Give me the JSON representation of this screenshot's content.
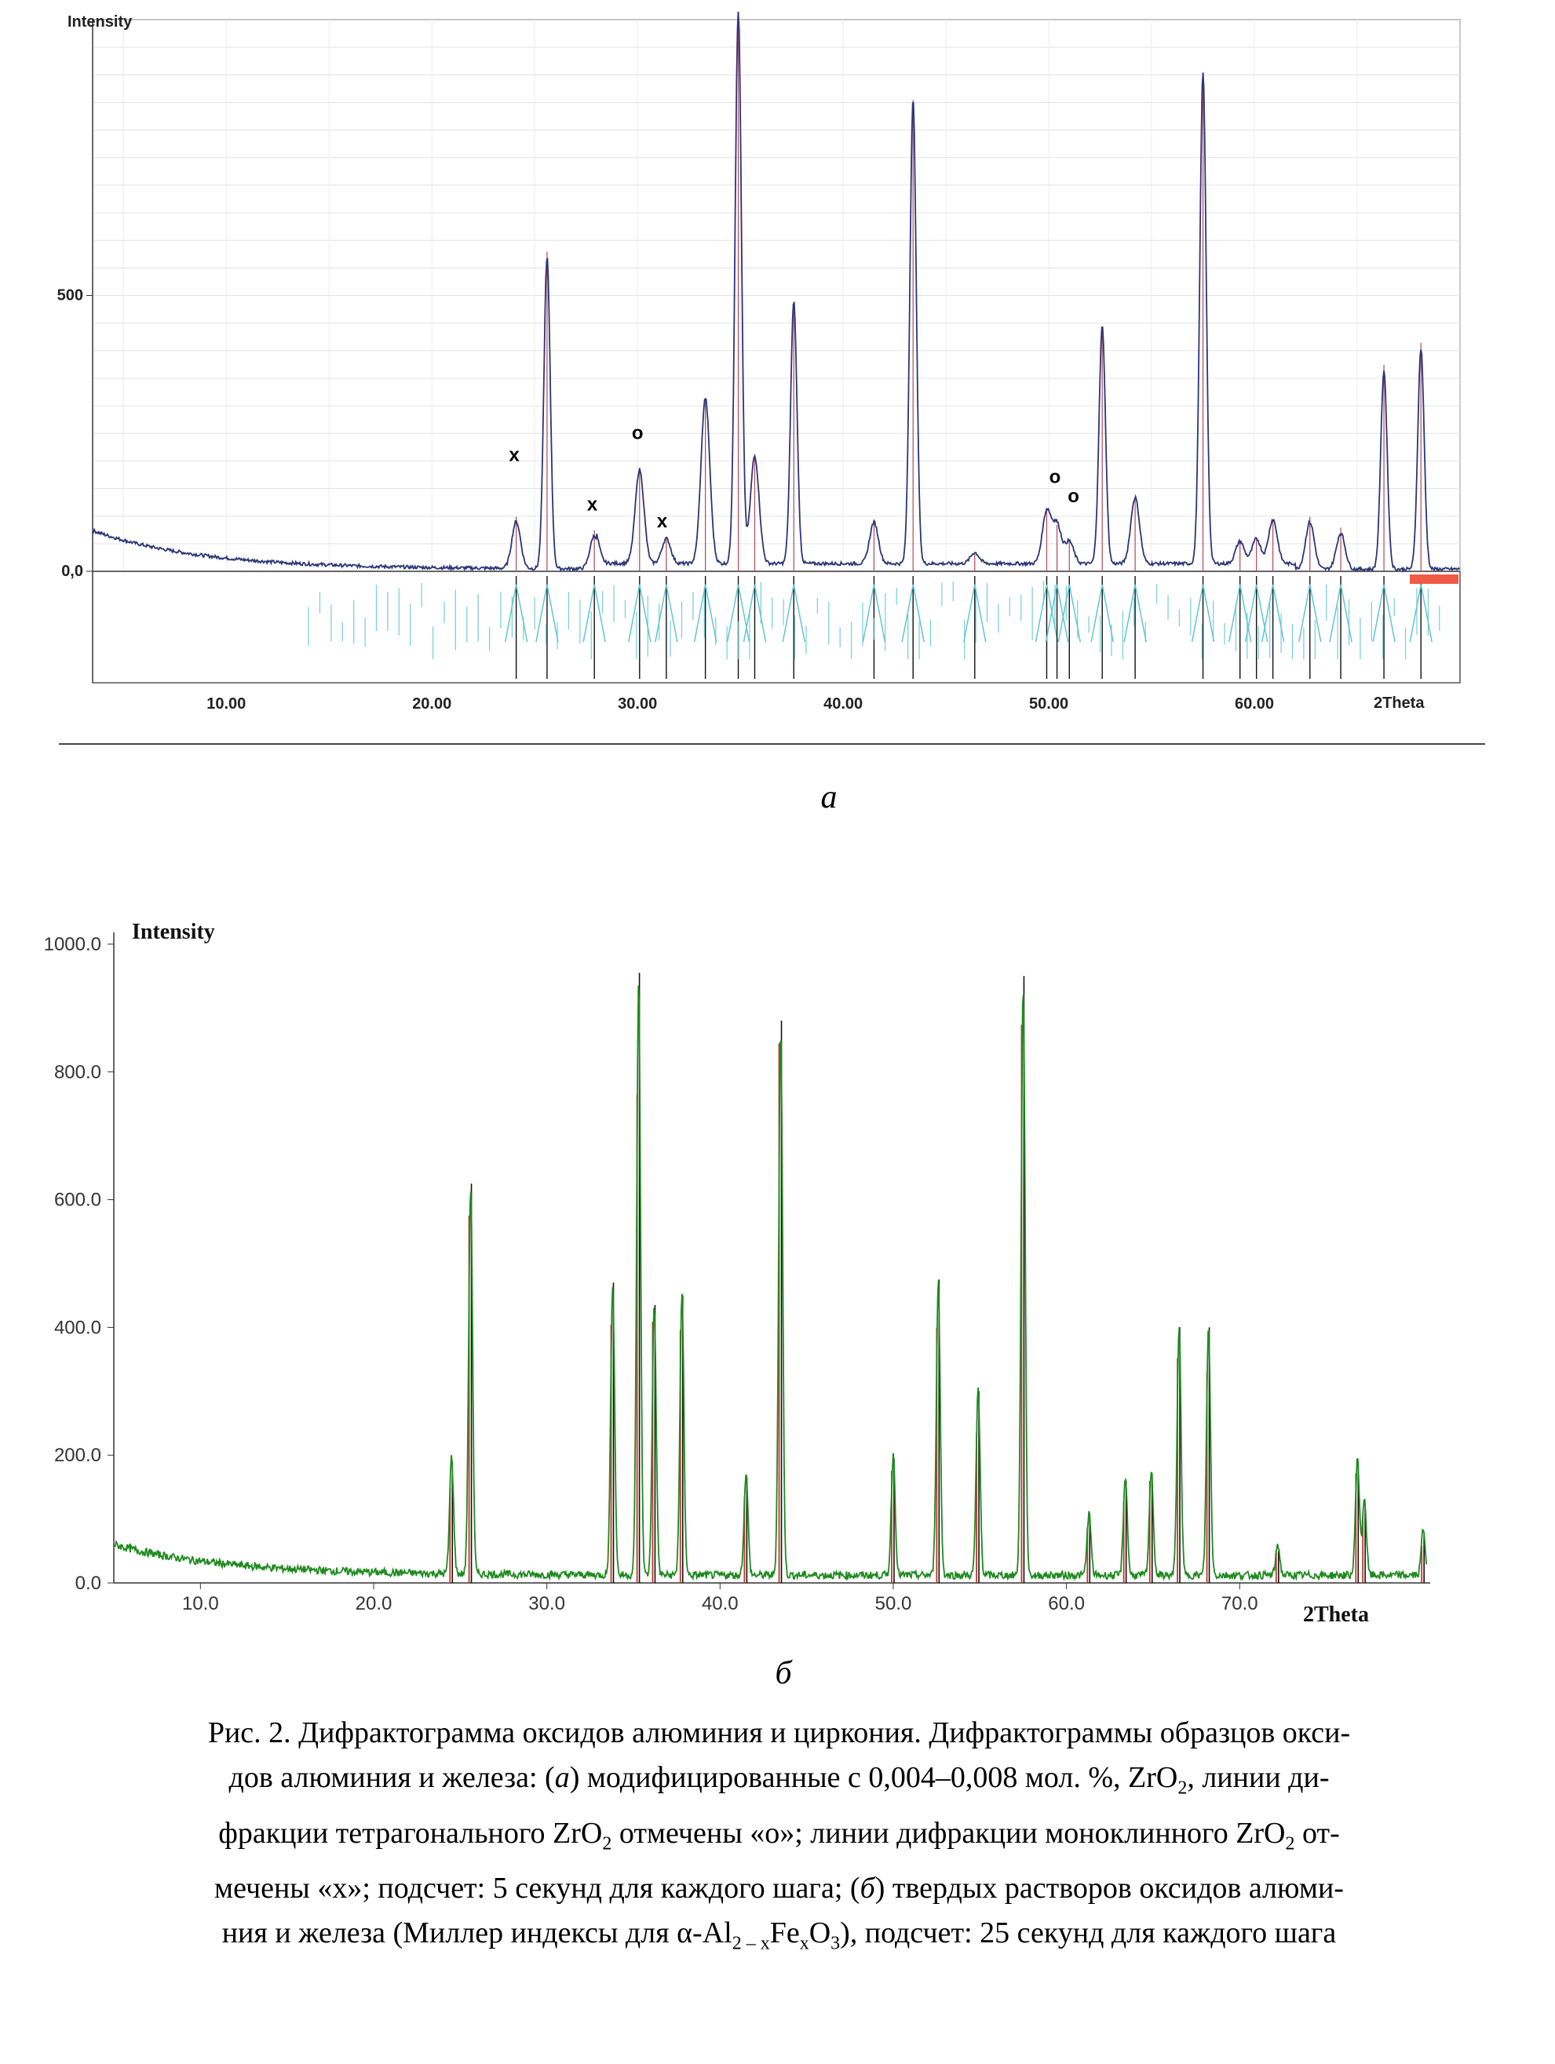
{
  "chart_data": [
    {
      "type": "line",
      "ylabel": "Intensity",
      "xlabel": "2Theta",
      "xlim": [
        3.5,
        70.0
      ],
      "ylim": [
        0,
        1000
      ],
      "y_ticks": [
        {
          "value": 0,
          "label": "0,0"
        },
        {
          "value": 500,
          "label": "500"
        }
      ],
      "x_ticks": [
        {
          "value": 10,
          "label": "10.00"
        },
        {
          "value": 20,
          "label": "20.00"
        },
        {
          "value": 30,
          "label": "30.00"
        },
        {
          "value": 40,
          "label": "40.00"
        },
        {
          "value": 50,
          "label": "50.00"
        },
        {
          "value": 60,
          "label": "60.00"
        }
      ],
      "peaks": [
        {
          "x": 24.1,
          "y": 85
        },
        {
          "x": 25.6,
          "y": 565
        },
        {
          "x": 27.9,
          "y": 60
        },
        {
          "x": 30.1,
          "y": 170
        },
        {
          "x": 31.4,
          "y": 45
        },
        {
          "x": 33.3,
          "y": 300
        },
        {
          "x": 34.9,
          "y": 1000
        },
        {
          "x": 35.7,
          "y": 195
        },
        {
          "x": 37.6,
          "y": 475
        },
        {
          "x": 41.5,
          "y": 75
        },
        {
          "x": 43.4,
          "y": 840
        },
        {
          "x": 46.4,
          "y": 20
        },
        {
          "x": 49.9,
          "y": 95
        },
        {
          "x": 50.4,
          "y": 70
        },
        {
          "x": 51.0,
          "y": 40
        },
        {
          "x": 52.6,
          "y": 430
        },
        {
          "x": 54.2,
          "y": 120
        },
        {
          "x": 57.5,
          "y": 890
        },
        {
          "x": 59.3,
          "y": 40
        },
        {
          "x": 60.1,
          "y": 45
        },
        {
          "x": 60.9,
          "y": 80
        },
        {
          "x": 62.7,
          "y": 85
        },
        {
          "x": 64.2,
          "y": 65
        },
        {
          "x": 66.3,
          "y": 360
        },
        {
          "x": 68.1,
          "y": 400
        }
      ],
      "annotations": [
        {
          "text": "x",
          "x": 24.0,
          "y": 200
        },
        {
          "text": "x",
          "x": 27.8,
          "y": 110
        },
        {
          "text": "o",
          "x": 30.0,
          "y": 240
        },
        {
          "text": "x",
          "x": 31.2,
          "y": 80
        },
        {
          "text": "o",
          "x": 50.3,
          "y": 160
        },
        {
          "text": "o",
          "x": 51.2,
          "y": 125
        }
      ]
    },
    {
      "type": "line",
      "ylabel": "Intensity",
      "xlabel": "2Theta",
      "xlim": [
        5.0,
        81.0
      ],
      "ylim": [
        0,
        1000
      ],
      "y_ticks": [
        {
          "value": 0,
          "label": "0.0"
        },
        {
          "value": 200,
          "label": "200.0"
        },
        {
          "value": 400,
          "label": "400.0"
        },
        {
          "value": 600,
          "label": "600.0"
        },
        {
          "value": 800,
          "label": "800.0"
        },
        {
          "value": 1000,
          "label": "1000.0"
        }
      ],
      "x_ticks": [
        {
          "value": 10,
          "label": "10.0"
        },
        {
          "value": 20,
          "label": "20.0"
        },
        {
          "value": 30,
          "label": "30.0"
        },
        {
          "value": 40,
          "label": "40.0"
        },
        {
          "value": 50,
          "label": "50.0"
        },
        {
          "value": 60,
          "label": "60.0"
        },
        {
          "value": 70,
          "label": "70.0"
        }
      ],
      "series": [
        {
          "values": [
            {
              "x": 24.5,
              "y": 190
            },
            {
              "x": 25.6,
              "y": 625
            },
            {
              "x": 33.8,
              "y": 470
            },
            {
              "x": 35.3,
              "y": 955
            },
            {
              "x": 36.2,
              "y": 435
            },
            {
              "x": 37.8,
              "y": 450
            },
            {
              "x": 41.5,
              "y": 165
            },
            {
              "x": 43.5,
              "y": 880
            },
            {
              "x": 50.0,
              "y": 195
            },
            {
              "x": 52.6,
              "y": 475
            },
            {
              "x": 54.9,
              "y": 300
            },
            {
              "x": 57.5,
              "y": 950
            },
            {
              "x": 61.3,
              "y": 100
            },
            {
              "x": 63.4,
              "y": 160
            },
            {
              "x": 64.9,
              "y": 170
            },
            {
              "x": 66.5,
              "y": 400
            },
            {
              "x": 68.2,
              "y": 400
            },
            {
              "x": 72.2,
              "y": 50
            },
            {
              "x": 76.8,
              "y": 190
            },
            {
              "x": 77.2,
              "y": 125
            },
            {
              "x": 80.6,
              "y": 75
            }
          ]
        }
      ]
    }
  ],
  "labels": {
    "panel_a": "а",
    "panel_b": "б"
  },
  "caption": {
    "line1": "Рис. 2. Дифрактограмма оксидов алюминия и циркония. Дифрактограммы образцов окси-",
    "line2a": "дов  алюминия и железа: (",
    "line2b": "а",
    "line2c": ") модифицированные с 0,004–0,008 мол. %, ZrO",
    "line2d": "2",
    "line2e": ", линии ди-",
    "line3a": "фракции тетрагонального ZrO",
    "line3b": "2",
    "line3c": " отмечены «о»; линии дифракции моноклинного ZrO",
    "line3d": "2",
    "line3e": " от-",
    "line4a": "мечены «х»; подсчет: 5 секунд для каждого шага; (",
    "line4b": "б",
    "line4c": ") твердых растворов оксидов алюми-",
    "line5a": "ния и железа (Миллер индексы для α-Al",
    "line5b": "2 – x",
    "line5c": "Fe",
    "line5d": "x",
    "line5e": "O",
    "line5f": "3",
    "line5g": "), подсчет: 25 секунд для каждого шага"
  }
}
